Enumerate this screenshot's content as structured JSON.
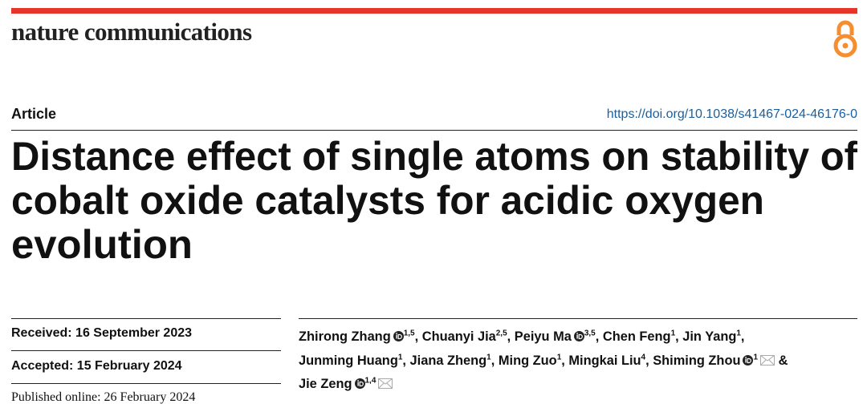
{
  "header": {
    "journal": "nature communications"
  },
  "article": {
    "type": "Article",
    "doi": "https://doi.org/10.1038/s41467-024-46176-0",
    "title_lines": [
      "Distance effect of single atoms on stability of",
      "cobalt oxide catalysts for acidic oxygen",
      "evolution"
    ]
  },
  "dates": {
    "received": "Received: 16 September 2023",
    "accepted": "Accepted: 15 February 2024",
    "published": "Published online: 26 February 2024"
  },
  "authors": [
    {
      "name": "Zhirong Zhang",
      "orcid": true,
      "affiliations": "1,5",
      "separator": ","
    },
    {
      "name": "Chuanyi Jia",
      "orcid": false,
      "affiliations": "2,5",
      "separator": ","
    },
    {
      "name": "Peiyu Ma",
      "orcid": true,
      "affiliations": "3,5",
      "separator": ","
    },
    {
      "name": "Chen Feng",
      "orcid": false,
      "affiliations": "1",
      "separator": ","
    },
    {
      "name": "Jin Yang",
      "orcid": false,
      "affiliations": "1",
      "separator": ","
    },
    {
      "name": "Junming Huang",
      "orcid": false,
      "affiliations": "1",
      "separator": ","
    },
    {
      "name": "Jiana Zheng",
      "orcid": false,
      "affiliations": "1",
      "separator": ","
    },
    {
      "name": "Ming Zuo",
      "orcid": false,
      "affiliations": "1",
      "separator": ","
    },
    {
      "name": "Mingkai Liu",
      "orcid": false,
      "affiliations": "4",
      "separator": ","
    },
    {
      "name": "Shiming Zhou",
      "orcid": true,
      "affiliations": "1",
      "corresponding": true,
      "separator": "&"
    },
    {
      "name": "Jie Zeng",
      "orcid": true,
      "affiliations": "1,4",
      "corresponding": true
    }
  ]
}
